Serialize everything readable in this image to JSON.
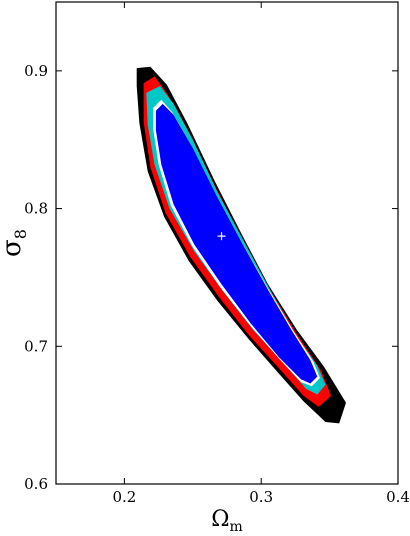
{
  "chart_data": {
    "type": "contour",
    "title": "",
    "xlabel": "Ω",
    "xlabel_sub": "m",
    "ylabel": "σ",
    "ylabel_sub": "8",
    "xlim": [
      0.15,
      0.4
    ],
    "ylim": [
      0.6,
      0.95
    ],
    "xticks": [
      0.2,
      0.3,
      0.4
    ],
    "yticks": [
      0.6,
      0.7,
      0.8,
      0.9
    ],
    "xtick_labels": [
      "0.2",
      "0.3",
      "0.4"
    ],
    "ytick_labels": [
      "0.6",
      "0.7",
      "0.8",
      "0.9"
    ],
    "grid": false,
    "best_fit": {
      "x": 0.271,
      "y": 0.78,
      "marker": "+",
      "color": "#ffffff"
    },
    "regions": [
      {
        "color": "#000000",
        "polygon": [
          [
            0.209,
            0.902
          ],
          [
            0.219,
            0.903
          ],
          [
            0.231,
            0.89
          ],
          [
            0.246,
            0.862
          ],
          [
            0.266,
            0.82
          ],
          [
            0.286,
            0.781
          ],
          [
            0.305,
            0.745
          ],
          [
            0.326,
            0.712
          ],
          [
            0.346,
            0.685
          ],
          [
            0.362,
            0.659
          ],
          [
            0.357,
            0.644
          ],
          [
            0.347,
            0.645
          ],
          [
            0.331,
            0.66
          ],
          [
            0.313,
            0.68
          ],
          [
            0.291,
            0.705
          ],
          [
            0.268,
            0.733
          ],
          [
            0.247,
            0.762
          ],
          [
            0.229,
            0.794
          ],
          [
            0.217,
            0.827
          ],
          [
            0.211,
            0.862
          ],
          [
            0.209,
            0.889
          ]
        ]
      },
      {
        "color": "#ff0000",
        "polygon": [
          [
            0.214,
            0.891
          ],
          [
            0.222,
            0.896
          ],
          [
            0.231,
            0.884
          ],
          [
            0.246,
            0.857
          ],
          [
            0.266,
            0.817
          ],
          [
            0.286,
            0.778
          ],
          [
            0.306,
            0.742
          ],
          [
            0.326,
            0.709
          ],
          [
            0.344,
            0.682
          ],
          [
            0.351,
            0.664
          ],
          [
            0.342,
            0.656
          ],
          [
            0.331,
            0.664
          ],
          [
            0.313,
            0.684
          ],
          [
            0.291,
            0.708
          ],
          [
            0.269,
            0.736
          ],
          [
            0.248,
            0.765
          ],
          [
            0.23,
            0.797
          ],
          [
            0.219,
            0.83
          ],
          [
            0.214,
            0.863
          ]
        ]
      },
      {
        "color": "#00c8c8",
        "polygon": [
          [
            0.216,
            0.884
          ],
          [
            0.226,
            0.889
          ],
          [
            0.236,
            0.876
          ],
          [
            0.25,
            0.85
          ],
          [
            0.268,
            0.812
          ],
          [
            0.288,
            0.775
          ],
          [
            0.307,
            0.74
          ],
          [
            0.326,
            0.707
          ],
          [
            0.341,
            0.686
          ],
          [
            0.347,
            0.672
          ],
          [
            0.341,
            0.665
          ],
          [
            0.333,
            0.669
          ],
          [
            0.316,
            0.688
          ],
          [
            0.294,
            0.712
          ],
          [
            0.272,
            0.74
          ],
          [
            0.251,
            0.769
          ],
          [
            0.233,
            0.8
          ],
          [
            0.222,
            0.832
          ],
          [
            0.217,
            0.861
          ]
        ]
      },
      {
        "color": "#ffffff",
        "polygon": [
          [
            0.221,
            0.873
          ],
          [
            0.227,
            0.879
          ],
          [
            0.235,
            0.87
          ],
          [
            0.249,
            0.846
          ],
          [
            0.266,
            0.812
          ],
          [
            0.285,
            0.777
          ],
          [
            0.305,
            0.742
          ],
          [
            0.323,
            0.712
          ],
          [
            0.338,
            0.689
          ],
          [
            0.343,
            0.677
          ],
          [
            0.337,
            0.671
          ],
          [
            0.329,
            0.674
          ],
          [
            0.314,
            0.69
          ],
          [
            0.292,
            0.715
          ],
          [
            0.27,
            0.743
          ],
          [
            0.25,
            0.772
          ],
          [
            0.234,
            0.802
          ],
          [
            0.225,
            0.832
          ],
          [
            0.221,
            0.858
          ]
        ]
      },
      {
        "color": "#0000ff",
        "polygon": [
          [
            0.223,
            0.871
          ],
          [
            0.228,
            0.876
          ],
          [
            0.236,
            0.868
          ],
          [
            0.25,
            0.844
          ],
          [
            0.267,
            0.81
          ],
          [
            0.286,
            0.775
          ],
          [
            0.305,
            0.741
          ],
          [
            0.322,
            0.712
          ],
          [
            0.336,
            0.69
          ],
          [
            0.341,
            0.678
          ],
          [
            0.336,
            0.673
          ],
          [
            0.329,
            0.676
          ],
          [
            0.313,
            0.692
          ],
          [
            0.292,
            0.717
          ],
          [
            0.271,
            0.745
          ],
          [
            0.251,
            0.774
          ],
          [
            0.236,
            0.803
          ],
          [
            0.227,
            0.832
          ],
          [
            0.223,
            0.857
          ]
        ]
      }
    ]
  }
}
